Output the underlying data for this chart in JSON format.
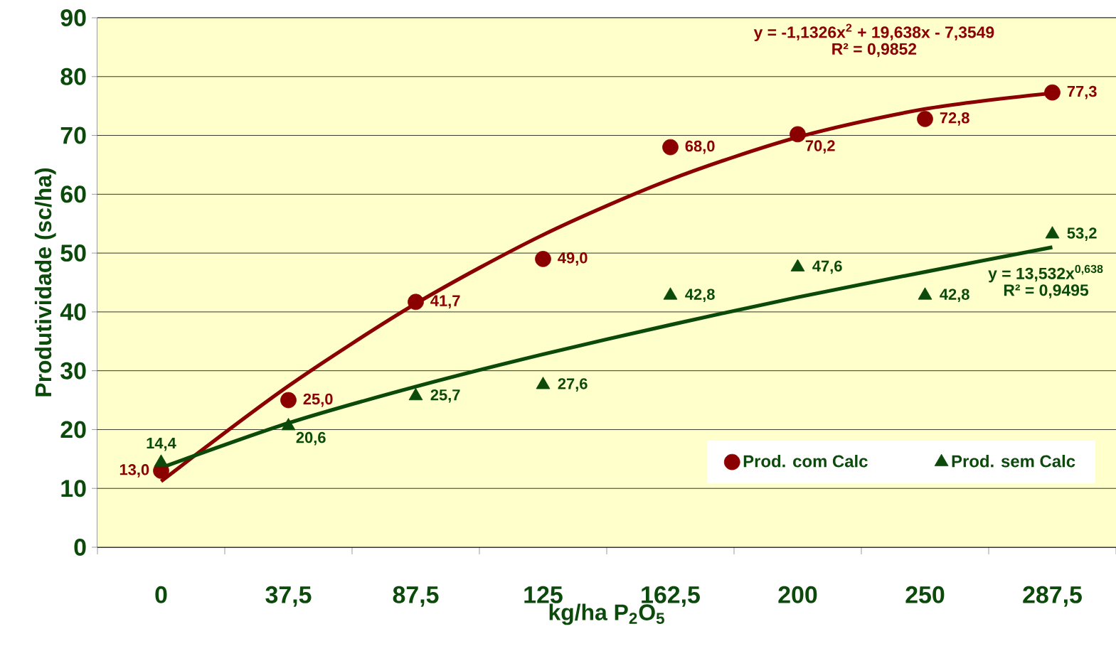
{
  "chart_data": {
    "type": "scatter",
    "categories": [
      "0",
      "37,5",
      "87,5",
      "125",
      "162,5",
      "200",
      "250",
      "287,5"
    ],
    "xlabel": "kg/ha P$_{2}$O$_{5}$",
    "ylabel": "Produtividade  (sc/ha)",
    "ylim": [
      0,
      90
    ],
    "yticks": [
      0,
      10,
      20,
      30,
      40,
      50,
      60,
      70,
      80,
      90
    ],
    "grid": "y",
    "legend": "bottom right",
    "annotations": [
      "y = -1,1326x$^{2}$ + 19,638x - 7,3549",
      "R² = 0,9852",
      "y = 13,532x$^{0,638}$",
      "R² = 0,9495"
    ],
    "series": [
      {
        "name": "Prod. com Calc",
        "marker": "circle",
        "color": "#8b0000",
        "values": [
          13.0,
          25.0,
          41.7,
          49.0,
          68.0,
          70.2,
          72.8,
          77.3
        ],
        "value_labels": [
          "13,0",
          "25,0",
          "41,7",
          "49,0",
          "68,0",
          "70,2",
          "72,8",
          "77,3"
        ]
      },
      {
        "name": "Prod. sem Calc",
        "marker": "triangle",
        "color": "#0b4a0b",
        "values": [
          14.4,
          20.6,
          25.7,
          27.6,
          42.8,
          47.6,
          42.8,
          53.2
        ],
        "value_labels": [
          "14,4",
          "20,6",
          "25,7",
          "27,6",
          "42,8",
          "47,6",
          "42,8",
          "53,2"
        ]
      },
      {
        "type": "line",
        "color": "#8b0000",
        "values": [
          11.2,
          27.4,
          41.4,
          53.1,
          62.5,
          69.7,
          74.5,
          77.2
        ]
      },
      {
        "type": "line",
        "color": "#0b4a0b",
        "values": [
          13.5,
          21.1,
          27.3,
          32.8,
          37.8,
          42.5,
          46.8,
          51.0
        ]
      }
    ]
  }
}
